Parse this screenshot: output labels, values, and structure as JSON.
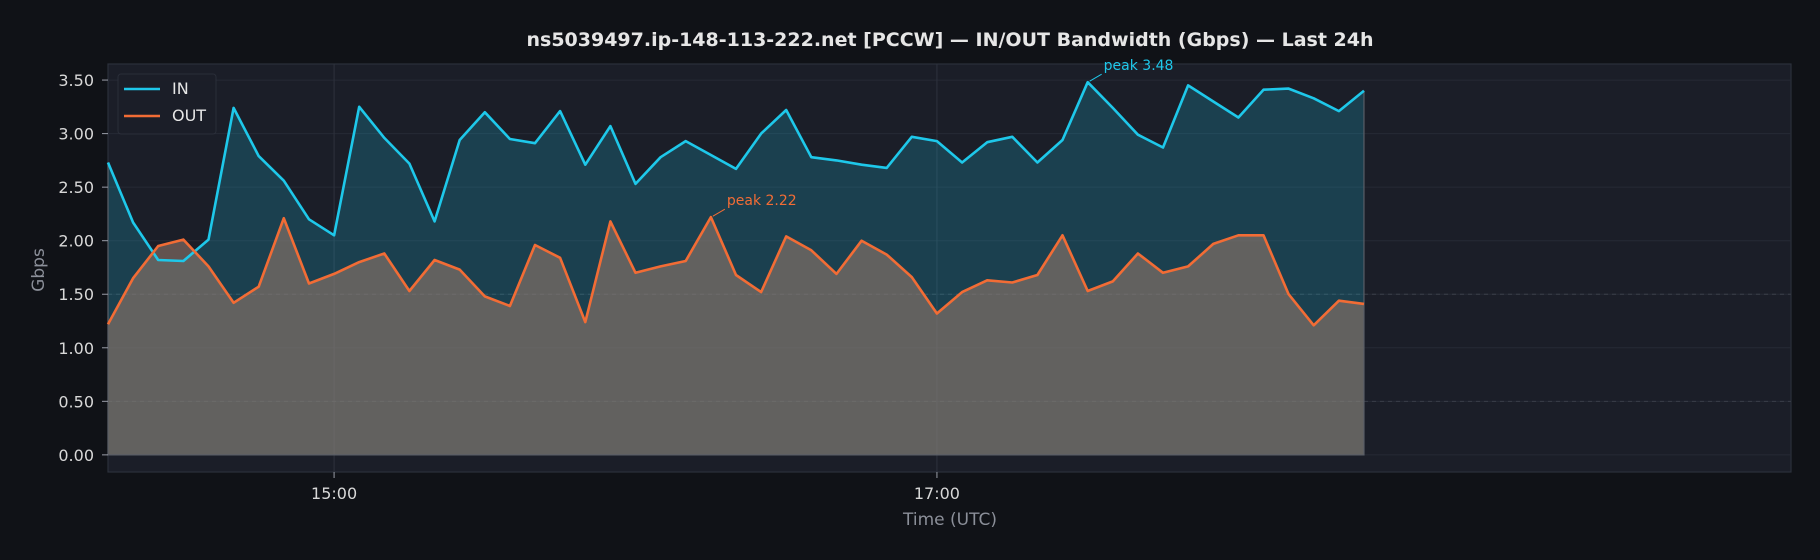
{
  "chart_data": {
    "type": "area",
    "title": "ns5039497.ip-148-113-222.net [PCCW] — IN/OUT Bandwidth (Gbps) — Last 24h",
    "xlabel": "Time (UTC)",
    "ylabel": "Gbps",
    "ylim": [
      -0.16,
      3.65
    ],
    "yticks": [
      0.0,
      0.5,
      1.0,
      1.5,
      2.0,
      2.5,
      3.0,
      3.5
    ],
    "ytick_labels": [
      "0.00",
      "0.50",
      "1.00",
      "1.50",
      "2.00",
      "2.50",
      "3.00",
      "3.50"
    ],
    "xlim": [
      "14:15",
      "19:50"
    ],
    "x": [
      "14:15",
      "14:20",
      "14:25",
      "14:30",
      "14:35",
      "14:40",
      "14:45",
      "14:50",
      "14:55",
      "15:00",
      "15:05",
      "15:10",
      "15:15",
      "15:20",
      "15:25",
      "15:30",
      "15:35",
      "15:40",
      "15:45",
      "15:50",
      "15:55",
      "16:00",
      "16:05",
      "16:10",
      "16:15",
      "16:20",
      "16:25",
      "16:30",
      "16:35",
      "16:40",
      "16:45",
      "16:50",
      "16:55",
      "17:00",
      "17:05",
      "17:10",
      "17:15",
      "17:20",
      "17:25",
      "17:30",
      "17:35",
      "17:40",
      "17:45",
      "17:50",
      "17:55",
      "18:00",
      "18:05",
      "18:10",
      "18:15",
      "18:20",
      "18:25"
    ],
    "xticks": [
      "15:00",
      "17:00"
    ],
    "grid": true,
    "legend_position": "top-left",
    "series": [
      {
        "name": "IN",
        "color": "#1ec8ea",
        "values": [
          2.73,
          2.17,
          1.82,
          1.81,
          2.01,
          3.24,
          2.79,
          2.56,
          2.2,
          2.05,
          3.25,
          2.96,
          2.72,
          2.18,
          2.94,
          3.2,
          2.95,
          2.91,
          3.21,
          2.71,
          3.07,
          2.53,
          2.78,
          2.93,
          2.8,
          2.67,
          3.0,
          3.22,
          2.78,
          2.75,
          2.71,
          2.68,
          2.97,
          2.93,
          2.73,
          2.92,
          2.97,
          2.73,
          2.94,
          3.48,
          3.24,
          2.99,
          2.87,
          3.45,
          3.3,
          3.15,
          3.41,
          3.42,
          3.33,
          3.21,
          3.4
        ]
      },
      {
        "name": "OUT",
        "color": "#f26c35",
        "values": [
          1.22,
          1.65,
          1.95,
          2.01,
          1.76,
          1.42,
          1.57,
          2.21,
          1.6,
          1.69,
          1.8,
          1.88,
          1.53,
          1.82,
          1.73,
          1.48,
          1.39,
          1.96,
          1.84,
          1.24,
          2.18,
          1.7,
          1.76,
          1.81,
          2.22,
          1.68,
          1.52,
          2.04,
          1.91,
          1.69,
          2.0,
          1.87,
          1.66,
          1.32,
          1.52,
          1.63,
          1.61,
          1.68,
          2.05,
          1.53,
          1.62,
          1.88,
          1.7,
          1.76,
          1.97,
          2.05,
          2.05,
          1.5,
          1.21,
          1.44,
          1.41
        ]
      }
    ],
    "annotations": [
      {
        "text": "peak 3.48",
        "series": "IN",
        "x": "17:30",
        "y": 3.48
      },
      {
        "text": "peak 2.22",
        "series": "OUT",
        "x": "16:15",
        "y": 2.22
      }
    ]
  }
}
